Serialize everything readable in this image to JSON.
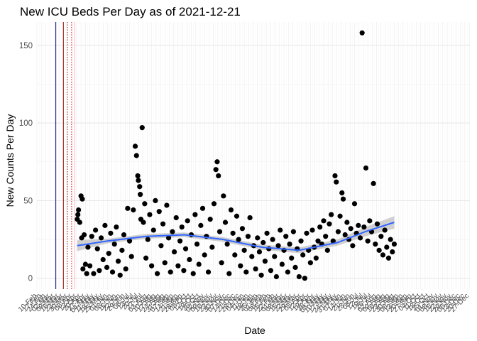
{
  "chart_data": {
    "type": "scatter",
    "title": "New ICU Beds Per Day as of 2021-12-21",
    "xlabel": "Date",
    "ylabel": "New Counts Per Day",
    "ylim": [
      -7,
      165
    ],
    "xlim": [
      "2020-02-10",
      "2021-12-28"
    ],
    "yticks": [
      0,
      50,
      100,
      150
    ],
    "grid": true,
    "point_color": "#000000",
    "smooth_color": "#3366FF",
    "ribbon_color": "#999999",
    "vlines": [
      {
        "date": "2020-03-11",
        "color": "#000080",
        "style": "solid"
      },
      {
        "date": "2020-03-23",
        "color": "#8B0000",
        "style": "solid"
      },
      {
        "date": "2020-03-29",
        "color": "#8B0000",
        "style": "dotted"
      },
      {
        "date": "2020-04-05",
        "color": "#FF0000",
        "style": "dotted"
      },
      {
        "date": "2020-04-10",
        "color": "#FFB6C1",
        "style": "solid"
      }
    ],
    "x_tick_labels": [
      "03-Feb",
      "10-Feb",
      "17-Feb",
      "24-Feb",
      "02-Mar",
      "09-Mar",
      "16-Mar",
      "23-Mar",
      "30-Mar",
      "06-Apr",
      "13-Apr",
      "20-Apr",
      "27-Apr",
      "04-May",
      "11-May",
      "18-May",
      "25-May",
      "01-Jun",
      "08-Jun",
      "15-Jun",
      "22-Jun",
      "29-Jun",
      "06-Jul",
      "13-Jul",
      "20-Jul",
      "27-Jul",
      "03-Aug",
      "10-Aug",
      "17-Aug",
      "24-Aug",
      "31-Aug",
      "07-Sep",
      "14-Sep",
      "21-Sep",
      "28-Sep",
      "05-Oct",
      "12-Oct",
      "19-Oct",
      "26-Oct",
      "02-Nov",
      "09-Nov",
      "16-Nov",
      "23-Nov",
      "30-Nov",
      "07-Dec",
      "14-Dec",
      "21-Dec",
      "28-Dec",
      "04-Jan",
      "11-Jan",
      "18-Jan",
      "25-Jan",
      "01-Feb",
      "08-Feb",
      "15-Feb",
      "22-Feb",
      "01-Mar",
      "08-Mar",
      "15-Mar",
      "22-Mar",
      "29-Mar",
      "05-Apr",
      "12-Apr",
      "19-Apr",
      "26-Apr",
      "03-May",
      "10-May",
      "17-May",
      "24-May",
      "31-May",
      "07-Jun",
      "14-Jun",
      "21-Jun",
      "28-Jun",
      "05-Jul",
      "12-Jul",
      "19-Jul",
      "26-Jul",
      "02-Aug",
      "09-Aug",
      "16-Aug",
      "23-Aug",
      "30-Aug",
      "06-Sep",
      "13-Sep",
      "20-Sep",
      "27-Sep",
      "04-Oct",
      "11-Oct",
      "18-Oct",
      "25-Oct",
      "01-Nov",
      "08-Nov",
      "15-Nov",
      "22-Nov",
      "29-Nov",
      "06-Dec",
      "13-Dec",
      "20-Dec",
      "27-Dec"
    ],
    "points": [
      {
        "x": "2020-04-14",
        "y": 38
      },
      {
        "x": "2020-04-15",
        "y": 41
      },
      {
        "x": "2020-04-16",
        "y": 44
      },
      {
        "x": "2020-04-18",
        "y": 36
      },
      {
        "x": "2020-04-20",
        "y": 53
      },
      {
        "x": "2020-04-21",
        "y": 26
      },
      {
        "x": "2020-04-22",
        "y": 51
      },
      {
        "x": "2020-04-23",
        "y": 6
      },
      {
        "x": "2020-04-25",
        "y": 28
      },
      {
        "x": "2020-04-27",
        "y": 9
      },
      {
        "x": "2020-04-29",
        "y": 3
      },
      {
        "x": "2020-05-01",
        "y": 20
      },
      {
        "x": "2020-05-04",
        "y": 8
      },
      {
        "x": "2020-05-07",
        "y": 27
      },
      {
        "x": "2020-05-10",
        "y": 3
      },
      {
        "x": "2020-05-13",
        "y": 31
      },
      {
        "x": "2020-05-16",
        "y": 19
      },
      {
        "x": "2020-05-19",
        "y": 5
      },
      {
        "x": "2020-05-22",
        "y": 26
      },
      {
        "x": "2020-05-25",
        "y": 12
      },
      {
        "x": "2020-05-28",
        "y": 34
      },
      {
        "x": "2020-05-31",
        "y": 7
      },
      {
        "x": "2020-06-03",
        "y": 16
      },
      {
        "x": "2020-06-06",
        "y": 29
      },
      {
        "x": "2020-06-09",
        "y": 4
      },
      {
        "x": "2020-06-12",
        "y": 22
      },
      {
        "x": "2020-06-15",
        "y": 33
      },
      {
        "x": "2020-06-18",
        "y": 11
      },
      {
        "x": "2020-06-21",
        "y": 2
      },
      {
        "x": "2020-06-24",
        "y": 18
      },
      {
        "x": "2020-06-27",
        "y": 28
      },
      {
        "x": "2020-06-30",
        "y": 6
      },
      {
        "x": "2020-07-03",
        "y": 45
      },
      {
        "x": "2020-07-06",
        "y": 24
      },
      {
        "x": "2020-07-09",
        "y": 14
      },
      {
        "x": "2020-07-12",
        "y": 44
      },
      {
        "x": "2020-07-15",
        "y": 85
      },
      {
        "x": "2020-07-17",
        "y": 79
      },
      {
        "x": "2020-07-19",
        "y": 66
      },
      {
        "x": "2020-07-20",
        "y": 63
      },
      {
        "x": "2020-07-22",
        "y": 59
      },
      {
        "x": "2020-07-23",
        "y": 54
      },
      {
        "x": "2020-07-24",
        "y": 38
      },
      {
        "x": "2020-07-26",
        "y": 97
      },
      {
        "x": "2020-07-28",
        "y": 36
      },
      {
        "x": "2020-07-30",
        "y": 48
      },
      {
        "x": "2020-08-01",
        "y": 13
      },
      {
        "x": "2020-08-04",
        "y": 25
      },
      {
        "x": "2020-08-07",
        "y": 41
      },
      {
        "x": "2020-08-10",
        "y": 8
      },
      {
        "x": "2020-08-13",
        "y": 31
      },
      {
        "x": "2020-08-16",
        "y": 50
      },
      {
        "x": "2020-08-19",
        "y": 3
      },
      {
        "x": "2020-08-22",
        "y": 43
      },
      {
        "x": "2020-08-25",
        "y": 21
      },
      {
        "x": "2020-08-28",
        "y": 35
      },
      {
        "x": "2020-08-31",
        "y": 10
      },
      {
        "x": "2020-09-03",
        "y": 47
      },
      {
        "x": "2020-09-06",
        "y": 26
      },
      {
        "x": "2020-09-09",
        "y": 4
      },
      {
        "x": "2020-09-12",
        "y": 30
      },
      {
        "x": "2020-09-15",
        "y": 17
      },
      {
        "x": "2020-09-18",
        "y": 39
      },
      {
        "x": "2020-09-21",
        "y": 8
      },
      {
        "x": "2020-09-24",
        "y": 24
      },
      {
        "x": "2020-09-27",
        "y": 33
      },
      {
        "x": "2020-09-30",
        "y": 5
      },
      {
        "x": "2020-10-03",
        "y": 19
      },
      {
        "x": "2020-10-06",
        "y": 37
      },
      {
        "x": "2020-10-09",
        "y": 12
      },
      {
        "x": "2020-10-12",
        "y": 28
      },
      {
        "x": "2020-10-15",
        "y": 3
      },
      {
        "x": "2020-10-18",
        "y": 41
      },
      {
        "x": "2020-10-21",
        "y": 22
      },
      {
        "x": "2020-10-24",
        "y": 9
      },
      {
        "x": "2020-10-27",
        "y": 34
      },
      {
        "x": "2020-10-30",
        "y": 45
      },
      {
        "x": "2020-11-02",
        "y": 15
      },
      {
        "x": "2020-11-05",
        "y": 27
      },
      {
        "x": "2020-11-08",
        "y": 4
      },
      {
        "x": "2020-11-11",
        "y": 38
      },
      {
        "x": "2020-11-14",
        "y": 20
      },
      {
        "x": "2020-11-17",
        "y": 48
      },
      {
        "x": "2020-11-20",
        "y": 70
      },
      {
        "x": "2020-11-22",
        "y": 75
      },
      {
        "x": "2020-11-24",
        "y": 66
      },
      {
        "x": "2020-11-26",
        "y": 30
      },
      {
        "x": "2020-11-29",
        "y": 10
      },
      {
        "x": "2020-12-02",
        "y": 53
      },
      {
        "x": "2020-12-05",
        "y": 36
      },
      {
        "x": "2020-12-08",
        "y": 22
      },
      {
        "x": "2020-12-11",
        "y": 3
      },
      {
        "x": "2020-12-14",
        "y": 44
      },
      {
        "x": "2020-12-17",
        "y": 29
      },
      {
        "x": "2020-12-20",
        "y": 15
      },
      {
        "x": "2020-12-23",
        "y": 40
      },
      {
        "x": "2020-12-26",
        "y": 25
      },
      {
        "x": "2020-12-29",
        "y": 8
      },
      {
        "x": "2021-01-01",
        "y": 32
      },
      {
        "x": "2021-01-04",
        "y": 18
      },
      {
        "x": "2021-01-07",
        "y": 4
      },
      {
        "x": "2021-01-10",
        "y": 27
      },
      {
        "x": "2021-01-13",
        "y": 39
      },
      {
        "x": "2021-01-16",
        "y": 14
      },
      {
        "x": "2021-01-19",
        "y": 21
      },
      {
        "x": "2021-01-22",
        "y": 6
      },
      {
        "x": "2021-01-25",
        "y": 26
      },
      {
        "x": "2021-01-28",
        "y": 17
      },
      {
        "x": "2021-01-31",
        "y": 2
      },
      {
        "x": "2021-02-03",
        "y": 23
      },
      {
        "x": "2021-02-06",
        "y": 11
      },
      {
        "x": "2021-02-09",
        "y": 29
      },
      {
        "x": "2021-02-12",
        "y": 19
      },
      {
        "x": "2021-02-15",
        "y": 5
      },
      {
        "x": "2021-02-18",
        "y": 25
      },
      {
        "x": "2021-02-21",
        "y": 14
      },
      {
        "x": "2021-02-24",
        "y": 1
      },
      {
        "x": "2021-02-27",
        "y": 21
      },
      {
        "x": "2021-03-02",
        "y": 31
      },
      {
        "x": "2021-03-05",
        "y": 9
      },
      {
        "x": "2021-03-08",
        "y": 18
      },
      {
        "x": "2021-03-11",
        "y": 27
      },
      {
        "x": "2021-03-14",
        "y": 4
      },
      {
        "x": "2021-03-17",
        "y": 22
      },
      {
        "x": "2021-03-20",
        "y": 13
      },
      {
        "x": "2021-03-23",
        "y": 30
      },
      {
        "x": "2021-03-26",
        "y": 7
      },
      {
        "x": "2021-03-29",
        "y": 19
      },
      {
        "x": "2021-04-01",
        "y": 1
      },
      {
        "x": "2021-04-04",
        "y": 24
      },
      {
        "x": "2021-04-07",
        "y": 15
      },
      {
        "x": "2021-04-10",
        "y": 0
      },
      {
        "x": "2021-04-13",
        "y": 29
      },
      {
        "x": "2021-04-16",
        "y": 18
      },
      {
        "x": "2021-04-19",
        "y": 10
      },
      {
        "x": "2021-04-22",
        "y": 31
      },
      {
        "x": "2021-04-25",
        "y": 20
      },
      {
        "x": "2021-04-28",
        "y": 13
      },
      {
        "x": "2021-05-01",
        "y": 24
      },
      {
        "x": "2021-05-04",
        "y": 33
      },
      {
        "x": "2021-05-07",
        "y": 22
      },
      {
        "x": "2021-05-10",
        "y": 37
      },
      {
        "x": "2021-05-13",
        "y": 27
      },
      {
        "x": "2021-05-16",
        "y": 18
      },
      {
        "x": "2021-05-19",
        "y": 35
      },
      {
        "x": "2021-05-22",
        "y": 41
      },
      {
        "x": "2021-05-25",
        "y": 24
      },
      {
        "x": "2021-05-28",
        "y": 66
      },
      {
        "x": "2021-05-30",
        "y": 62
      },
      {
        "x": "2021-06-02",
        "y": 30
      },
      {
        "x": "2021-06-05",
        "y": 40
      },
      {
        "x": "2021-06-08",
        "y": 55
      },
      {
        "x": "2021-06-10",
        "y": 51
      },
      {
        "x": "2021-06-13",
        "y": 28
      },
      {
        "x": "2021-06-16",
        "y": 36
      },
      {
        "x": "2021-06-19",
        "y": 25
      },
      {
        "x": "2021-06-22",
        "y": 32
      },
      {
        "x": "2021-06-25",
        "y": 21
      },
      {
        "x": "2021-06-28",
        "y": 48
      },
      {
        "x": "2021-07-01",
        "y": 29
      },
      {
        "x": "2021-07-04",
        "y": 34
      },
      {
        "x": "2021-07-07",
        "y": 26
      },
      {
        "x": "2021-07-10",
        "y": 158
      },
      {
        "x": "2021-07-13",
        "y": 33
      },
      {
        "x": "2021-07-16",
        "y": 71
      },
      {
        "x": "2021-07-19",
        "y": 24
      },
      {
        "x": "2021-07-22",
        "y": 37
      },
      {
        "x": "2021-07-25",
        "y": 30
      },
      {
        "x": "2021-07-28",
        "y": 61
      },
      {
        "x": "2021-07-31",
        "y": 22
      },
      {
        "x": "2021-08-03",
        "y": 35
      },
      {
        "x": "2021-08-06",
        "y": 18
      },
      {
        "x": "2021-08-09",
        "y": 27
      },
      {
        "x": "2021-08-12",
        "y": 15
      },
      {
        "x": "2021-08-15",
        "y": 31
      },
      {
        "x": "2021-08-18",
        "y": 20
      },
      {
        "x": "2021-08-21",
        "y": 13
      },
      {
        "x": "2021-08-24",
        "y": 25
      },
      {
        "x": "2021-08-27",
        "y": 17
      },
      {
        "x": "2021-08-30",
        "y": 22
      }
    ],
    "smooth": [
      {
        "x": "2020-04-14",
        "y": 21
      },
      {
        "x": "2020-06-01",
        "y": 24
      },
      {
        "x": "2020-08-01",
        "y": 27
      },
      {
        "x": "2020-10-01",
        "y": 28
      },
      {
        "x": "2020-12-01",
        "y": 25
      },
      {
        "x": "2021-02-01",
        "y": 20
      },
      {
        "x": "2021-04-01",
        "y": 18
      },
      {
        "x": "2021-06-01",
        "y": 23
      },
      {
        "x": "2021-07-15",
        "y": 30
      },
      {
        "x": "2021-08-30",
        "y": 36
      }
    ],
    "ribbon_halfwidth": [
      {
        "x": "2020-04-14",
        "y": 3.5
      },
      {
        "x": "2020-06-01",
        "y": 1.5
      },
      {
        "x": "2020-12-01",
        "y": 1.5
      },
      {
        "x": "2021-06-01",
        "y": 2
      },
      {
        "x": "2021-08-30",
        "y": 4
      }
    ]
  }
}
